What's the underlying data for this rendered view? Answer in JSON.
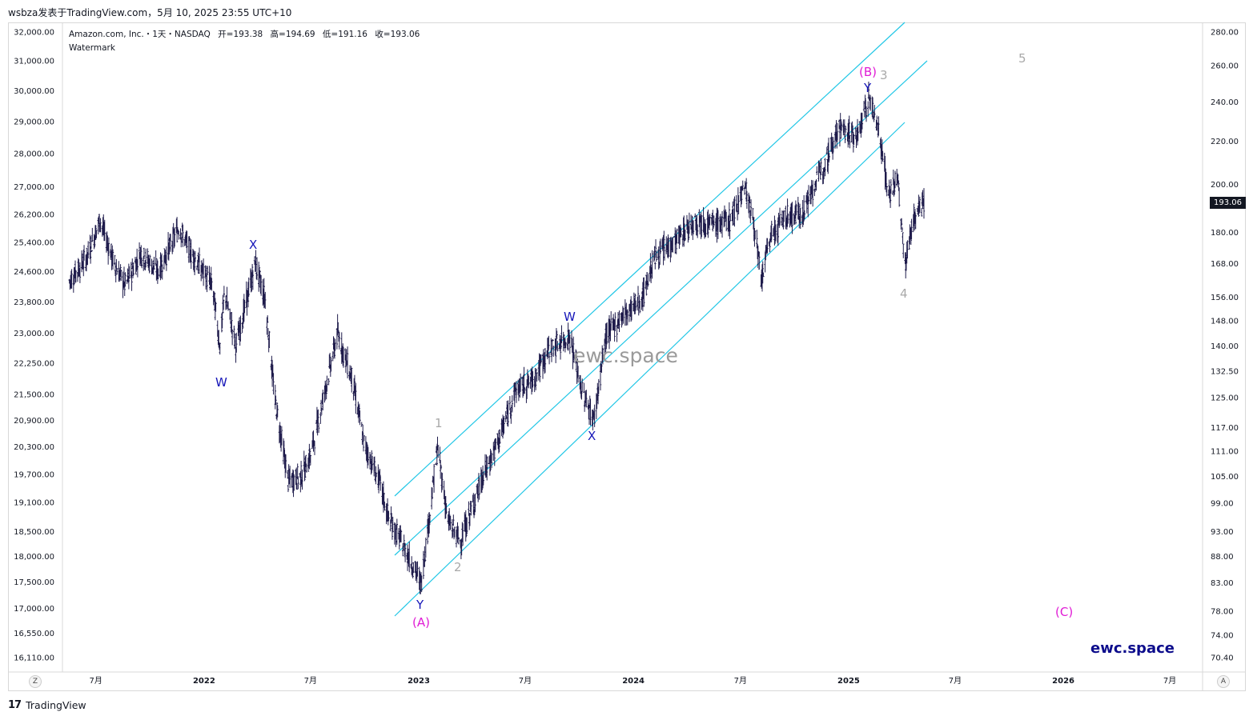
{
  "header": {
    "publish_line": "wsbza发表于TradingView.com，5月 10, 2025 23:55 UTC+10"
  },
  "legend": {
    "symbol": "Amazon.com, Inc.・1天・NASDAQ",
    "open": "开=193.38",
    "high": "高=194.69",
    "low": "低=191.16",
    "close": "收=193.06",
    "indicator": "Watermark"
  },
  "left_axis": [
    "32,000.00",
    "31,000.00",
    "30,000.00",
    "29,000.00",
    "28,000.00",
    "27,000.00",
    "26,200.00",
    "25,400.00",
    "24,600.00",
    "23,800.00",
    "23,000.00",
    "22,250.00",
    "21,500.00",
    "20,900.00",
    "20,300.00",
    "19,700.00",
    "19,100.00",
    "18,500.00",
    "18,000.00",
    "17,500.00",
    "17,000.00",
    "16,550.00",
    "16,110.00"
  ],
  "right_axis": [
    "280.00",
    "260.00",
    "240.00",
    "220.00",
    "200.00",
    "180.00",
    "168.00",
    "156.00",
    "148.00",
    "140.00",
    "132.50",
    "125.00",
    "117.00",
    "111.00",
    "105.00",
    "99.00",
    "93.00",
    "88.00",
    "83.00",
    "78.00",
    "74.00",
    "70.40"
  ],
  "time_axis": [
    {
      "label": "7月",
      "bold": false
    },
    {
      "label": "2022",
      "bold": true
    },
    {
      "label": "7月",
      "bold": false
    },
    {
      "label": "2023",
      "bold": true
    },
    {
      "label": "7月",
      "bold": false
    },
    {
      "label": "2024",
      "bold": true
    },
    {
      "label": "7月",
      "bold": false
    },
    {
      "label": "2025",
      "bold": true
    },
    {
      "label": "7月",
      "bold": false
    },
    {
      "label": "2026",
      "bold": true
    },
    {
      "label": "7月",
      "bold": false
    }
  ],
  "last_price_tag": "193.06",
  "watermarks": {
    "center": "ewc.space",
    "corner": "ewc.space"
  },
  "corner_buttons": {
    "left": "Z",
    "right": "A"
  },
  "footer": {
    "logo": "17",
    "brand": "TradingView"
  },
  "wave_labels": [
    {
      "text": "W",
      "color": "blue"
    },
    {
      "text": "X",
      "color": "blue"
    },
    {
      "text": "Y",
      "color": "blue"
    },
    {
      "text": "(A)",
      "color": "magenta"
    },
    {
      "text": "1",
      "color": "grey"
    },
    {
      "text": "2",
      "color": "grey"
    },
    {
      "text": "W",
      "color": "blue"
    },
    {
      "text": "X",
      "color": "blue"
    },
    {
      "text": "(B)",
      "color": "magenta"
    },
    {
      "text": "Y",
      "color": "blue"
    },
    {
      "text": "3",
      "color": "grey"
    },
    {
      "text": "4",
      "color": "grey"
    },
    {
      "text": "5",
      "color": "grey"
    },
    {
      "text": "(C)",
      "color": "magenta"
    }
  ],
  "chart_data": {
    "type": "line",
    "title": "Amazon.com, Inc.・1天・NASDAQ",
    "ylabel": "",
    "xlabel": "",
    "right_scale": "log",
    "y_range_right": [
      70.4,
      280.0
    ],
    "y_range_left": [
      16110,
      32000
    ],
    "x_range": [
      "2021-05",
      "2026-09"
    ],
    "grid": false,
    "series": [
      {
        "values_daily_close_approx": [
          {
            "date": "2021-05-15",
            "value": 161
          },
          {
            "date": "2021-06-15",
            "value": 170
          },
          {
            "date": "2021-07-08",
            "value": 185
          },
          {
            "date": "2021-08-01",
            "value": 168
          },
          {
            "date": "2021-08-20",
            "value": 160
          },
          {
            "date": "2021-09-15",
            "value": 172
          },
          {
            "date": "2021-10-15",
            "value": 165
          },
          {
            "date": "2021-11-19",
            "value": 182
          },
          {
            "date": "2021-12-10",
            "value": 172
          },
          {
            "date": "2022-01-15",
            "value": 160
          },
          {
            "date": "2022-01-28",
            "value": 140
          },
          {
            "date": "2022-02-05",
            "value": 158
          },
          {
            "date": "2022-02-24",
            "value": 140
          },
          {
            "date": "2022-03-29",
            "value": 168
          },
          {
            "date": "2022-04-15",
            "value": 155
          },
          {
            "date": "2022-05-01",
            "value": 125
          },
          {
            "date": "2022-05-24",
            "value": 104
          },
          {
            "date": "2022-06-15",
            "value": 105
          },
          {
            "date": "2022-07-01",
            "value": 110
          },
          {
            "date": "2022-08-16",
            "value": 144
          },
          {
            "date": "2022-09-10",
            "value": 130
          },
          {
            "date": "2022-09-30",
            "value": 113
          },
          {
            "date": "2022-10-28",
            "value": 103
          },
          {
            "date": "2022-11-10",
            "value": 96
          },
          {
            "date": "2022-12-15",
            "value": 88
          },
          {
            "date": "2023-01-05",
            "value": 83
          },
          {
            "date": "2023-01-20",
            "value": 97
          },
          {
            "date": "2023-02-02",
            "value": 112
          },
          {
            "date": "2023-02-20",
            "value": 95
          },
          {
            "date": "2023-03-13",
            "value": 91
          },
          {
            "date": "2023-04-15",
            "value": 103
          },
          {
            "date": "2023-05-20",
            "value": 115
          },
          {
            "date": "2023-06-15",
            "value": 127
          },
          {
            "date": "2023-07-15",
            "value": 130
          },
          {
            "date": "2023-08-10",
            "value": 139
          },
          {
            "date": "2023-09-15",
            "value": 143
          },
          {
            "date": "2023-10-05",
            "value": 127
          },
          {
            "date": "2023-10-26",
            "value": 119
          },
          {
            "date": "2023-11-15",
            "value": 143
          },
          {
            "date": "2023-12-15",
            "value": 150
          },
          {
            "date": "2024-01-15",
            "value": 155
          },
          {
            "date": "2024-02-05",
            "value": 170
          },
          {
            "date": "2024-03-15",
            "value": 177
          },
          {
            "date": "2024-04-15",
            "value": 185
          },
          {
            "date": "2024-05-15",
            "value": 183
          },
          {
            "date": "2024-06-15",
            "value": 185
          },
          {
            "date": "2024-07-08",
            "value": 200
          },
          {
            "date": "2024-07-25",
            "value": 182
          },
          {
            "date": "2024-08-05",
            "value": 161
          },
          {
            "date": "2024-08-20",
            "value": 178
          },
          {
            "date": "2024-09-15",
            "value": 186
          },
          {
            "date": "2024-10-15",
            "value": 188
          },
          {
            "date": "2024-11-15",
            "value": 206
          },
          {
            "date": "2024-12-15",
            "value": 227
          },
          {
            "date": "2025-01-15",
            "value": 222
          },
          {
            "date": "2025-02-04",
            "value": 242
          },
          {
            "date": "2025-02-20",
            "value": 228
          },
          {
            "date": "2025-03-10",
            "value": 195
          },
          {
            "date": "2025-03-25",
            "value": 203
          },
          {
            "date": "2025-04-07",
            "value": 167
          },
          {
            "date": "2025-04-20",
            "value": 185
          },
          {
            "date": "2025-05-09",
            "value": 193.06
          }
        ]
      }
    ],
    "channel_lines": "three parallel cyan trend lines (2022-12 to 2025-05)"
  }
}
